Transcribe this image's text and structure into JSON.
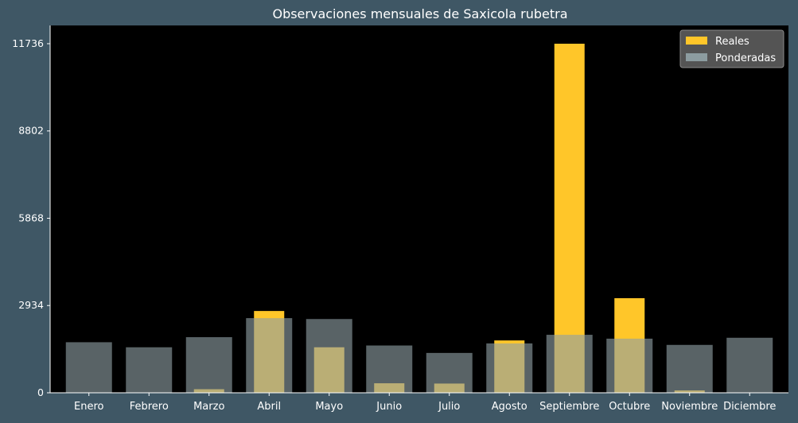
{
  "chart_data": {
    "type": "bar",
    "title": "Observaciones mensuales de Saxicola rubetra",
    "xlabel": "",
    "ylabel": "",
    "categories": [
      "Enero",
      "Febrero",
      "Marzo",
      "Abril",
      "Mayo",
      "Junio",
      "Julio",
      "Agosto",
      "Septiembre",
      "Octubre",
      "Noviembre",
      "Diciembre"
    ],
    "yticks": [
      0,
      2934,
      5868,
      8802,
      11736
    ],
    "ylim": [
      0,
      12350
    ],
    "grid": false,
    "legend_position": "top-right",
    "series": [
      {
        "name": "Reales",
        "color": "#ffc629",
        "values": [
          0,
          0,
          120,
          2750,
          1530,
          320,
          310,
          1760,
          11736,
          3180,
          80,
          0
        ]
      },
      {
        "name": "Ponderadas",
        "color": "#8fa0a4",
        "values": [
          1700,
          1530,
          1870,
          2510,
          2480,
          1590,
          1340,
          1660,
          1950,
          1820,
          1610,
          1850
        ]
      }
    ],
    "colors": {
      "figure_background": "#3f5765",
      "plot_background": "#000000",
      "text": "#ffffff",
      "legend_background": "#595959"
    }
  }
}
